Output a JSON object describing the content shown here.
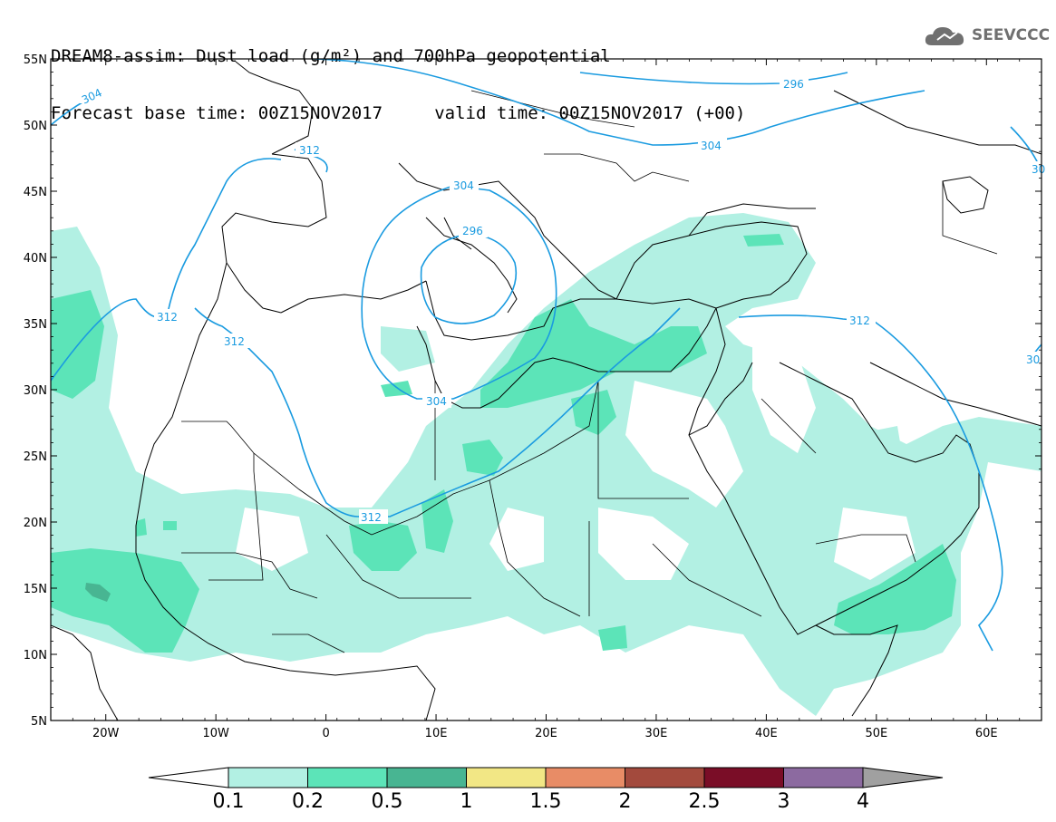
{
  "header": {
    "line1": "DREAM8-assim: Dust load (g/m²) and 700hPa geopotential",
    "line2": "Forecast base time: 00Z15NOV2017     valid time: 00Z15NOV2017 (+00)"
  },
  "logo": {
    "text": "SEEVCCC",
    "icon": "cloud-icon"
  },
  "map": {
    "lon_range": [
      -25,
      65
    ],
    "lat_range": [
      5,
      55
    ],
    "lat_ticks": [
      "55N",
      "50N",
      "45N",
      "40N",
      "35N",
      "30N",
      "25N",
      "20N",
      "15N",
      "10N",
      "5N"
    ],
    "lon_ticks": [
      "20W",
      "10W",
      "0",
      "10E",
      "20E",
      "30E",
      "40E",
      "50E",
      "60E"
    ],
    "contour_labels": [
      "304",
      "296",
      "304",
      "312",
      "304",
      "296",
      "312",
      "312",
      "304",
      "312",
      "312",
      "30",
      "30"
    ],
    "contour_color": "#1a9be0"
  },
  "colorbar": {
    "labels": [
      "0.1",
      "0.2",
      "0.5",
      "1",
      "1.5",
      "2",
      "2.5",
      "3",
      "4"
    ],
    "colors": [
      "#b2f0e3",
      "#5ce4b8",
      "#48b592",
      "#f2e785",
      "#e88c66",
      "#a34a3d",
      "#7a0d27",
      "#8c6aa0"
    ],
    "under_color": "#ffffff",
    "over_color": "#a0a0a0"
  }
}
